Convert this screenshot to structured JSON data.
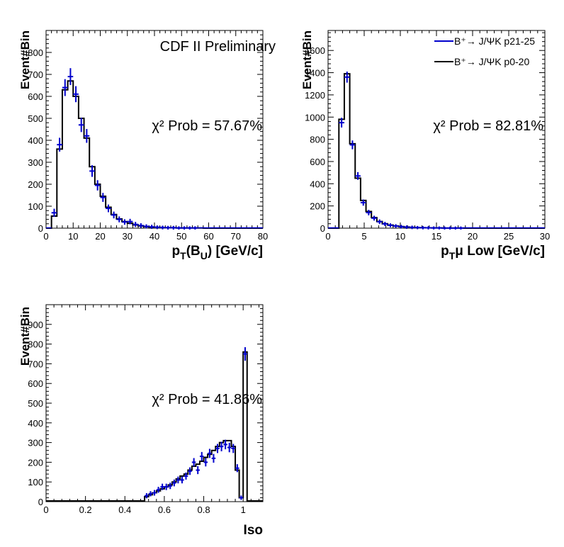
{
  "colors": {
    "data": "#0000cc",
    "mc": "#000000",
    "frame": "#000000"
  },
  "header": {
    "label": "CDF II Preliminary"
  },
  "legend": {
    "entries": [
      {
        "label": "B⁺→ J/ΨK p21-25",
        "color": "#0000cc"
      },
      {
        "label": "B⁺→ J/ΨK p0-20",
        "color": "#000000"
      }
    ]
  },
  "chart_data": [
    {
      "type": "histogram",
      "xlabel_main": "p",
      "xlabel_sub": "T",
      "xlabel_rest": "(B",
      "xlabel_sub2": "U",
      "xlabel_end": ") [GeV/c]",
      "ylabel": "Event#Bin",
      "annotation": "χ² Prob = 57.67%",
      "xlim": [
        0,
        80
      ],
      "ylim": [
        0,
        900
      ],
      "xticks": [
        0,
        10,
        20,
        30,
        40,
        50,
        60,
        70,
        80
      ],
      "yticks": [
        0,
        100,
        200,
        300,
        400,
        500,
        600,
        700,
        800
      ],
      "bin_edges": [
        0,
        2,
        4,
        6,
        8,
        10,
        12,
        14,
        16,
        18,
        20,
        22,
        24,
        26,
        28,
        30,
        32,
        34,
        36,
        38,
        40,
        42,
        44,
        46,
        48,
        50,
        52,
        54,
        56,
        58,
        60,
        62,
        64,
        66,
        68,
        70,
        72,
        74,
        76,
        78,
        80
      ],
      "series": [
        {
          "name": "B⁺→ J/ΨK p0-20",
          "style": "step",
          "values": [
            0,
            55,
            360,
            630,
            670,
            600,
            500,
            410,
            280,
            200,
            145,
            95,
            62,
            42,
            30,
            22,
            15,
            10,
            7,
            5,
            4,
            3,
            2,
            2,
            1,
            1,
            1,
            1,
            1,
            0,
            0,
            0,
            0,
            0,
            0,
            0,
            0,
            0,
            0,
            0
          ]
        },
        {
          "name": "B⁺→ J/ΨK p21-25",
          "style": "points",
          "values": [
            0,
            70,
            380,
            640,
            690,
            610,
            470,
            420,
            260,
            195,
            140,
            90,
            60,
            40,
            28,
            30,
            17,
            12,
            8,
            6,
            4,
            3,
            2,
            2,
            1,
            1,
            1,
            1,
            0,
            0,
            0,
            0,
            0,
            0,
            0,
            0,
            0,
            0,
            0,
            0
          ],
          "errors": [
            0,
            12,
            25,
            32,
            32,
            30,
            26,
            25,
            20,
            17,
            14,
            11,
            9,
            7,
            6,
            6,
            5,
            4,
            3,
            3,
            2,
            2,
            2,
            2,
            1,
            1,
            1,
            1,
            0,
            0,
            0,
            0,
            0,
            0,
            0,
            0,
            0,
            0,
            0,
            0
          ]
        }
      ]
    },
    {
      "type": "histogram",
      "xlabel_main": "p",
      "xlabel_sub": "T",
      "xlabel_rest": "μ Low [GeV/c]",
      "xlabel_sub2": "",
      "xlabel_end": "",
      "ylabel": "Event#Bin",
      "annotation": "χ² Prob = 82.81%",
      "xlim": [
        0,
        30
      ],
      "ylim": [
        0,
        1780
      ],
      "xticks": [
        0,
        5,
        10,
        15,
        20,
        25,
        30
      ],
      "yticks": [
        0,
        200,
        400,
        600,
        800,
        1000,
        1200,
        1400,
        1600
      ],
      "bin_edges": [
        0,
        0.75,
        1.5,
        2.25,
        3,
        3.75,
        4.5,
        5.25,
        6,
        6.75,
        7.5,
        8.25,
        9,
        9.75,
        10.5,
        11.25,
        12,
        12.75,
        13.5,
        14.25,
        15,
        15.75,
        16.5,
        17.25,
        18,
        18.75,
        19.5,
        20.25,
        21,
        21.75,
        22.5,
        23.25,
        24,
        24.75,
        25.5,
        26.25,
        27,
        27.75,
        28.5,
        29.25,
        30
      ],
      "series": [
        {
          "name": "B⁺→ J/ΨK p0-20",
          "style": "step",
          "values": [
            0,
            0,
            980,
            1390,
            760,
            450,
            250,
            150,
            95,
            60,
            40,
            28,
            20,
            14,
            10,
            7,
            5,
            4,
            3,
            2,
            2,
            1,
            1,
            1,
            1,
            0,
            0,
            0,
            0,
            0,
            0,
            0,
            0,
            0,
            0,
            0,
            0,
            0,
            0,
            0
          ]
        },
        {
          "name": "B⁺→ J/ΨK p21-25",
          "style": "points",
          "values": [
            0,
            0,
            950,
            1360,
            750,
            470,
            230,
            140,
            90,
            58,
            38,
            26,
            19,
            13,
            9,
            7,
            5,
            4,
            3,
            2,
            2,
            1,
            1,
            1,
            1,
            0,
            0,
            0,
            0,
            0,
            0,
            0,
            0,
            0,
            0,
            0,
            0,
            0,
            0,
            0
          ],
          "errors": [
            0,
            0,
            31,
            37,
            27,
            22,
            15,
            12,
            9,
            8,
            6,
            5,
            4,
            4,
            3,
            3,
            2,
            2,
            2,
            1,
            1,
            1,
            1,
            1,
            1,
            0,
            0,
            0,
            0,
            0,
            0,
            0,
            0,
            0,
            0,
            0,
            0,
            0,
            0,
            0
          ]
        }
      ]
    },
    {
      "type": "histogram",
      "xlabel_main": "Iso",
      "xlabel_sub": "",
      "xlabel_rest": "",
      "xlabel_sub2": "",
      "xlabel_end": "",
      "ylabel": "Event#Bin",
      "annotation": "χ² Prob = 41.86%",
      "xlim": [
        0,
        1.1
      ],
      "ylim": [
        0,
        1000
      ],
      "xticks": [
        0,
        0.2,
        0.4,
        0.6,
        0.8,
        1
      ],
      "xticklabels": [
        "0",
        "0.2",
        "0.4",
        "0.6",
        "0.8",
        "1"
      ],
      "yticks": [
        0,
        100,
        200,
        300,
        400,
        500,
        600,
        700,
        800,
        900
      ],
      "bin_edges": [
        0.5,
        0.52,
        0.54,
        0.56,
        0.58,
        0.6,
        0.62,
        0.64,
        0.66,
        0.68,
        0.7,
        0.72,
        0.74,
        0.76,
        0.78,
        0.8,
        0.82,
        0.84,
        0.86,
        0.88,
        0.9,
        0.92,
        0.94,
        0.96,
        0.98,
        1.0,
        1.02
      ],
      "series": [
        {
          "name": "B⁺→ J/ΨK p0-20",
          "style": "step",
          "values": [
            25,
            35,
            45,
            55,
            65,
            75,
            85,
            100,
            115,
            130,
            140,
            160,
            180,
            190,
            205,
            225,
            240,
            260,
            280,
            300,
            310,
            310,
            280,
            160,
            20,
            760
          ]
        },
        {
          "name": "B⁺→ J/ΨK p21-25",
          "style": "points",
          "values": [
            30,
            40,
            45,
            60,
            75,
            75,
            80,
            95,
            110,
            110,
            130,
            155,
            200,
            160,
            230,
            200,
            245,
            220,
            270,
            280,
            290,
            275,
            270,
            170,
            20,
            750
          ],
          "errors": [
            6,
            6,
            7,
            8,
            9,
            9,
            9,
            10,
            10,
            10,
            11,
            12,
            14,
            13,
            15,
            14,
            16,
            15,
            16,
            17,
            17,
            17,
            16,
            13,
            4,
            27
          ]
        }
      ]
    }
  ]
}
